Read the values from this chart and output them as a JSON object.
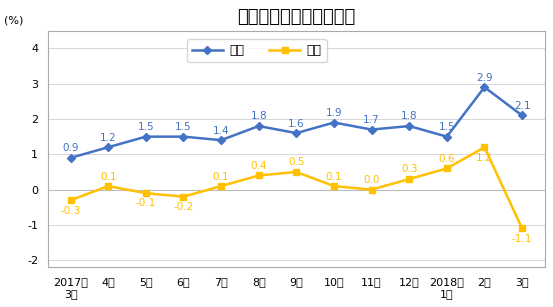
{
  "title": "全国居民消费价格涨跌幅",
  "ylabel": "(%)",
  "x_labels": [
    "2017年\n3月",
    "4月",
    "5月",
    "6月",
    "7月",
    "8月",
    "9月",
    "10月",
    "11月",
    "12月",
    "2018年\n1月",
    "2月",
    "3月"
  ],
  "tongbi": [
    0.9,
    1.2,
    1.5,
    1.5,
    1.4,
    1.8,
    1.6,
    1.9,
    1.7,
    1.8,
    1.5,
    2.9,
    2.1
  ],
  "huanbi": [
    -0.3,
    0.1,
    -0.1,
    -0.2,
    0.1,
    0.4,
    0.5,
    0.1,
    0.0,
    0.3,
    0.6,
    1.2,
    -1.1
  ],
  "tongbi_color": "#4472C4",
  "huanbi_color": "#FFC000",
  "ylim": [
    -2.2,
    4.5
  ],
  "yticks": [
    -2,
    -1,
    0,
    1,
    2,
    3,
    4
  ],
  "legend_labels": [
    "同比",
    "环比"
  ],
  "background_color": "#ffffff",
  "grid_color": "#d0d0d0",
  "spine_color": "#aaaaaa",
  "title_fontsize": 13,
  "label_fontsize": 7.5,
  "tick_fontsize": 8,
  "legend_fontsize": 9
}
